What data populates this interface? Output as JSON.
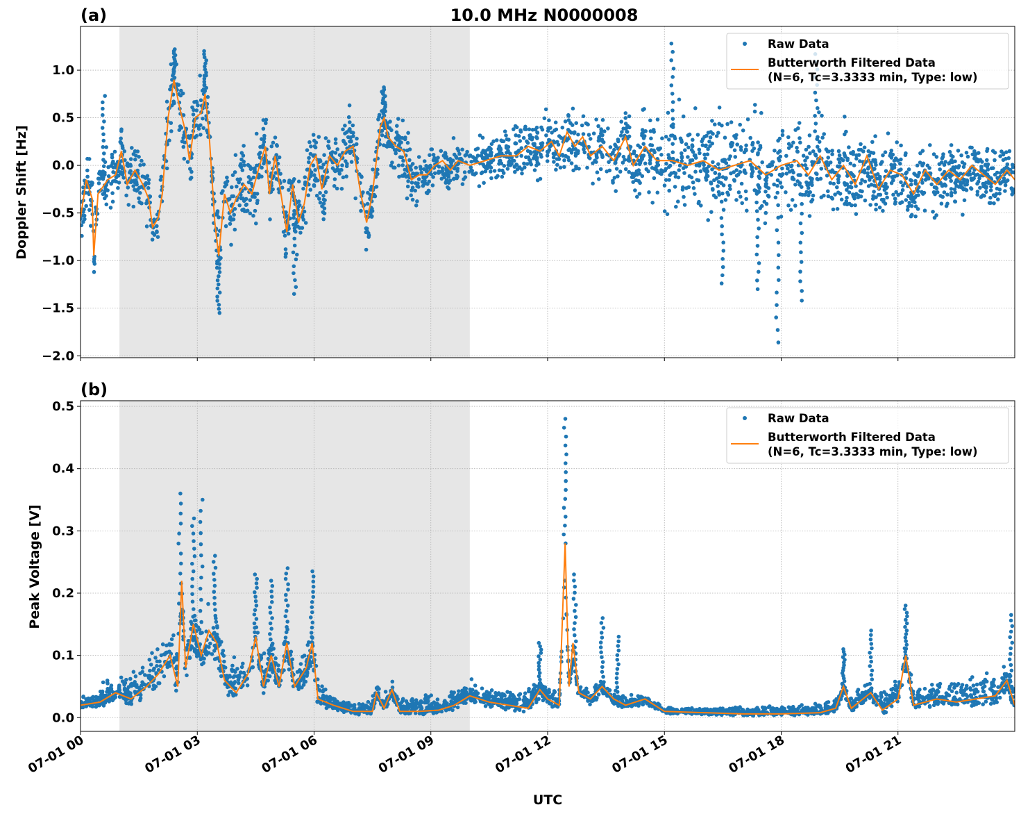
{
  "title": "10.0 MHz N0000008",
  "colors": {
    "raw": "#1f77b4",
    "filtered": "#ff7f0e",
    "shade": "#e6e6e6",
    "grid": "#b0b0b0"
  },
  "chart_data": [
    {
      "type": "scatter+line",
      "panel_label": "(a)",
      "ylabel": "Doppler Shift [Hz]",
      "xlabel": "",
      "xlim": [
        0,
        24
      ],
      "ylim": [
        -2.02,
        1.46
      ],
      "x_unit": "hours since 07-01 00 UTC",
      "x_ticks": [
        0,
        3,
        6,
        9,
        12,
        15,
        18,
        21
      ],
      "x_tick_labels": [],
      "y_ticks": [
        1.0,
        0.5,
        0.0,
        -0.5,
        -1.0,
        -1.5,
        -2.0
      ],
      "y_tick_labels": [
        "1.0",
        "0.5",
        "0.0",
        "−0.5",
        "−1.0",
        "−1.5",
        "−2.0"
      ],
      "grid": true,
      "shaded_interval": [
        1.0,
        10.0
      ],
      "legend": {
        "placement": "top-right",
        "entries": [
          "Raw Data",
          "Butterworth Filtered Data",
          "(N=6, Tc=3.3333 min, Type: low)"
        ]
      },
      "series": [
        {
          "name": "Raw Data",
          "kind": "scatter",
          "spread": [
            [
              0,
              0.25
            ],
            [
              2,
              0.3
            ],
            [
              3.5,
              0.35
            ],
            [
              6,
              0.3
            ],
            [
              8.5,
              0.25
            ],
            [
              10,
              0.2
            ],
            [
              14,
              0.3
            ],
            [
              15,
              0.45
            ],
            [
              20,
              0.35
            ],
            [
              24,
              0.25
            ]
          ],
          "peaks": [
            [
              2.4,
              1.2
            ],
            [
              3.2,
              1.2
            ],
            [
              0.6,
              0.73
            ],
            [
              7.8,
              0.82
            ],
            [
              15.2,
              1.28
            ],
            [
              18.9,
              1.17
            ],
            [
              17.9,
              -1.86
            ],
            [
              16.5,
              -1.24
            ],
            [
              18.5,
              -1.42
            ],
            [
              17.4,
              -1.3
            ],
            [
              3.55,
              -1.55
            ],
            [
              5.5,
              -1.35
            ]
          ]
        },
        {
          "name": "Butterworth Filtered Data",
          "kind": "line",
          "points": [
            [
              0,
              -0.55
            ],
            [
              0.15,
              -0.15
            ],
            [
              0.3,
              -0.35
            ],
            [
              0.34,
              -0.95
            ],
            [
              0.45,
              -0.3
            ],
            [
              0.7,
              -0.15
            ],
            [
              0.9,
              -0.1
            ],
            [
              1.05,
              0.15
            ],
            [
              1.2,
              -0.2
            ],
            [
              1.4,
              -0.05
            ],
            [
              1.6,
              -0.2
            ],
            [
              1.75,
              -0.35
            ],
            [
              1.85,
              -0.65
            ],
            [
              2.0,
              -0.55
            ],
            [
              2.1,
              -0.3
            ],
            [
              2.25,
              0.5
            ],
            [
              2.4,
              0.9
            ],
            [
              2.55,
              0.6
            ],
            [
              2.7,
              0.35
            ],
            [
              2.8,
              0.05
            ],
            [
              2.95,
              0.5
            ],
            [
              3.1,
              0.55
            ],
            [
              3.2,
              0.75
            ],
            [
              3.3,
              0.35
            ],
            [
              3.45,
              -0.6
            ],
            [
              3.55,
              -0.95
            ],
            [
              3.7,
              -0.3
            ],
            [
              3.85,
              -0.5
            ],
            [
              4.0,
              -0.35
            ],
            [
              4.2,
              -0.2
            ],
            [
              4.4,
              -0.3
            ],
            [
              4.6,
              0.0
            ],
            [
              4.75,
              0.2
            ],
            [
              4.85,
              -0.3
            ],
            [
              5.0,
              0.1
            ],
            [
              5.15,
              -0.3
            ],
            [
              5.3,
              -0.7
            ],
            [
              5.45,
              -0.2
            ],
            [
              5.6,
              -0.6
            ],
            [
              5.75,
              -0.4
            ],
            [
              5.9,
              0.0
            ],
            [
              6.05,
              0.1
            ],
            [
              6.2,
              -0.25
            ],
            [
              6.4,
              0.1
            ],
            [
              6.6,
              0.0
            ],
            [
              6.8,
              0.15
            ],
            [
              7.0,
              0.2
            ],
            [
              7.2,
              -0.3
            ],
            [
              7.35,
              -0.6
            ],
            [
              7.5,
              -0.3
            ],
            [
              7.7,
              0.4
            ],
            [
              7.8,
              0.5
            ],
            [
              7.9,
              0.3
            ],
            [
              8.1,
              0.2
            ],
            [
              8.3,
              0.15
            ],
            [
              8.5,
              -0.15
            ],
            [
              8.7,
              -0.1
            ],
            [
              8.9,
              -0.1
            ],
            [
              9.1,
              0.0
            ],
            [
              9.3,
              0.05
            ],
            [
              9.5,
              -0.05
            ],
            [
              9.7,
              0.05
            ],
            [
              10.0,
              0.0
            ],
            [
              10.4,
              0.05
            ],
            [
              10.8,
              0.1
            ],
            [
              11.2,
              0.1
            ],
            [
              11.5,
              0.2
            ],
            [
              11.8,
              0.15
            ],
            [
              12.1,
              0.25
            ],
            [
              12.3,
              0.1
            ],
            [
              12.5,
              0.35
            ],
            [
              12.7,
              0.2
            ],
            [
              12.9,
              0.3
            ],
            [
              13.1,
              0.1
            ],
            [
              13.4,
              0.2
            ],
            [
              13.7,
              0.05
            ],
            [
              14.0,
              0.3
            ],
            [
              14.2,
              0.0
            ],
            [
              14.5,
              0.2
            ],
            [
              14.8,
              0.05
            ],
            [
              15.2,
              0.05
            ],
            [
              15.6,
              0.0
            ],
            [
              16.0,
              0.05
            ],
            [
              16.4,
              -0.05
            ],
            [
              16.8,
              0.0
            ],
            [
              17.2,
              0.05
            ],
            [
              17.6,
              -0.1
            ],
            [
              18.0,
              0.0
            ],
            [
              18.4,
              0.05
            ],
            [
              18.7,
              -0.1
            ],
            [
              19.0,
              0.1
            ],
            [
              19.3,
              -0.15
            ],
            [
              19.6,
              0.0
            ],
            [
              19.9,
              -0.2
            ],
            [
              20.2,
              0.1
            ],
            [
              20.5,
              -0.25
            ],
            [
              20.8,
              -0.05
            ],
            [
              21.1,
              -0.1
            ],
            [
              21.4,
              -0.3
            ],
            [
              21.7,
              -0.05
            ],
            [
              22.0,
              -0.2
            ],
            [
              22.3,
              -0.05
            ],
            [
              22.6,
              -0.15
            ],
            [
              22.9,
              0.0
            ],
            [
              23.2,
              -0.1
            ],
            [
              23.5,
              -0.2
            ],
            [
              23.8,
              -0.05
            ],
            [
              24,
              -0.15
            ]
          ]
        }
      ]
    },
    {
      "type": "scatter+line",
      "panel_label": "(b)",
      "ylabel": "Peak Voltage [V]",
      "xlabel": "UTC",
      "xlim": [
        0,
        24
      ],
      "ylim": [
        -0.022,
        0.509
      ],
      "x_unit": "hours since 07-01 00 UTC",
      "x_ticks": [
        0,
        3,
        6,
        9,
        12,
        15,
        18,
        21
      ],
      "x_tick_labels": [
        "07-01 00",
        "07-01 03",
        "07-01 06",
        "07-01 09",
        "07-01 12",
        "07-01 15",
        "07-01 18",
        "07-01 21"
      ],
      "y_ticks": [
        0.5,
        0.4,
        0.3,
        0.2,
        0.1,
        0.0
      ],
      "y_tick_labels": [
        "0.5",
        "0.4",
        "0.3",
        "0.2",
        "0.1",
        "0.0"
      ],
      "grid": true,
      "shaded_interval": [
        1.0,
        10.0
      ],
      "legend": {
        "placement": "top-right",
        "entries": [
          "Raw Data",
          "Butterworth Filtered Data",
          "(N=6, Tc=3.3333 min, Type: low)"
        ]
      },
      "series": [
        {
          "name": "Raw Data",
          "kind": "scatter",
          "spread": [
            [
              0,
              0.012
            ],
            [
              1,
              0.02
            ],
            [
              2,
              0.04
            ],
            [
              6,
              0.03
            ],
            [
              6.5,
              0.01
            ],
            [
              9.5,
              0.015
            ],
            [
              11.5,
              0.02
            ],
            [
              14.5,
              0.008
            ],
            [
              15,
              0.005
            ],
            [
              19,
              0.01
            ],
            [
              21,
              0.02
            ],
            [
              24,
              0.025
            ]
          ],
          "peaks": [
            [
              2.55,
              0.36
            ],
            [
              2.9,
              0.32
            ],
            [
              3.1,
              0.35
            ],
            [
              3.45,
              0.26
            ],
            [
              4.5,
              0.23
            ],
            [
              4.9,
              0.22
            ],
            [
              5.3,
              0.24
            ],
            [
              5.95,
              0.235
            ],
            [
              11.8,
              0.12
            ],
            [
              12.45,
              0.48
            ],
            [
              12.7,
              0.23
            ],
            [
              13.4,
              0.16
            ],
            [
              13.8,
              0.13
            ],
            [
              19.6,
              0.11
            ],
            [
              20.3,
              0.14
            ],
            [
              21.2,
              0.18
            ],
            [
              23.9,
              0.165
            ]
          ]
        },
        {
          "name": "Butterworth Filtered Data",
          "kind": "line",
          "points": [
            [
              0,
              0.02
            ],
            [
              0.5,
              0.025
            ],
            [
              0.9,
              0.04
            ],
            [
              1.3,
              0.03
            ],
            [
              1.7,
              0.05
            ],
            [
              2.0,
              0.07
            ],
            [
              2.3,
              0.1
            ],
            [
              2.5,
              0.05
            ],
            [
              2.6,
              0.22
            ],
            [
              2.7,
              0.08
            ],
            [
              2.9,
              0.15
            ],
            [
              3.1,
              0.1
            ],
            [
              3.3,
              0.14
            ],
            [
              3.5,
              0.12
            ],
            [
              3.7,
              0.06
            ],
            [
              4.0,
              0.04
            ],
            [
              4.3,
              0.07
            ],
            [
              4.5,
              0.13
            ],
            [
              4.7,
              0.05
            ],
            [
              4.9,
              0.1
            ],
            [
              5.1,
              0.05
            ],
            [
              5.3,
              0.12
            ],
            [
              5.5,
              0.05
            ],
            [
              5.8,
              0.08
            ],
            [
              5.95,
              0.12
            ],
            [
              6.1,
              0.03
            ],
            [
              6.5,
              0.02
            ],
            [
              7.0,
              0.01
            ],
            [
              7.5,
              0.01
            ],
            [
              7.6,
              0.04
            ],
            [
              7.8,
              0.015
            ],
            [
              8.0,
              0.045
            ],
            [
              8.2,
              0.01
            ],
            [
              8.7,
              0.01
            ],
            [
              9.2,
              0.012
            ],
            [
              9.6,
              0.02
            ],
            [
              10.0,
              0.035
            ],
            [
              10.5,
              0.025
            ],
            [
              11.0,
              0.02
            ],
            [
              11.5,
              0.015
            ],
            [
              11.8,
              0.045
            ],
            [
              12.0,
              0.03
            ],
            [
              12.3,
              0.02
            ],
            [
              12.45,
              0.28
            ],
            [
              12.55,
              0.05
            ],
            [
              12.65,
              0.12
            ],
            [
              12.8,
              0.04
            ],
            [
              13.1,
              0.03
            ],
            [
              13.4,
              0.05
            ],
            [
              13.7,
              0.03
            ],
            [
              14.0,
              0.02
            ],
            [
              14.5,
              0.03
            ],
            [
              15.0,
              0.01
            ],
            [
              16.0,
              0.008
            ],
            [
              17.0,
              0.006
            ],
            [
              18.0,
              0.006
            ],
            [
              19.0,
              0.008
            ],
            [
              19.4,
              0.015
            ],
            [
              19.6,
              0.05
            ],
            [
              19.8,
              0.015
            ],
            [
              20.3,
              0.04
            ],
            [
              20.6,
              0.012
            ],
            [
              21.0,
              0.03
            ],
            [
              21.2,
              0.1
            ],
            [
              21.4,
              0.02
            ],
            [
              22.0,
              0.03
            ],
            [
              22.5,
              0.025
            ],
            [
              23.0,
              0.03
            ],
            [
              23.5,
              0.035
            ],
            [
              23.8,
              0.06
            ],
            [
              24,
              0.02
            ]
          ]
        }
      ]
    }
  ]
}
